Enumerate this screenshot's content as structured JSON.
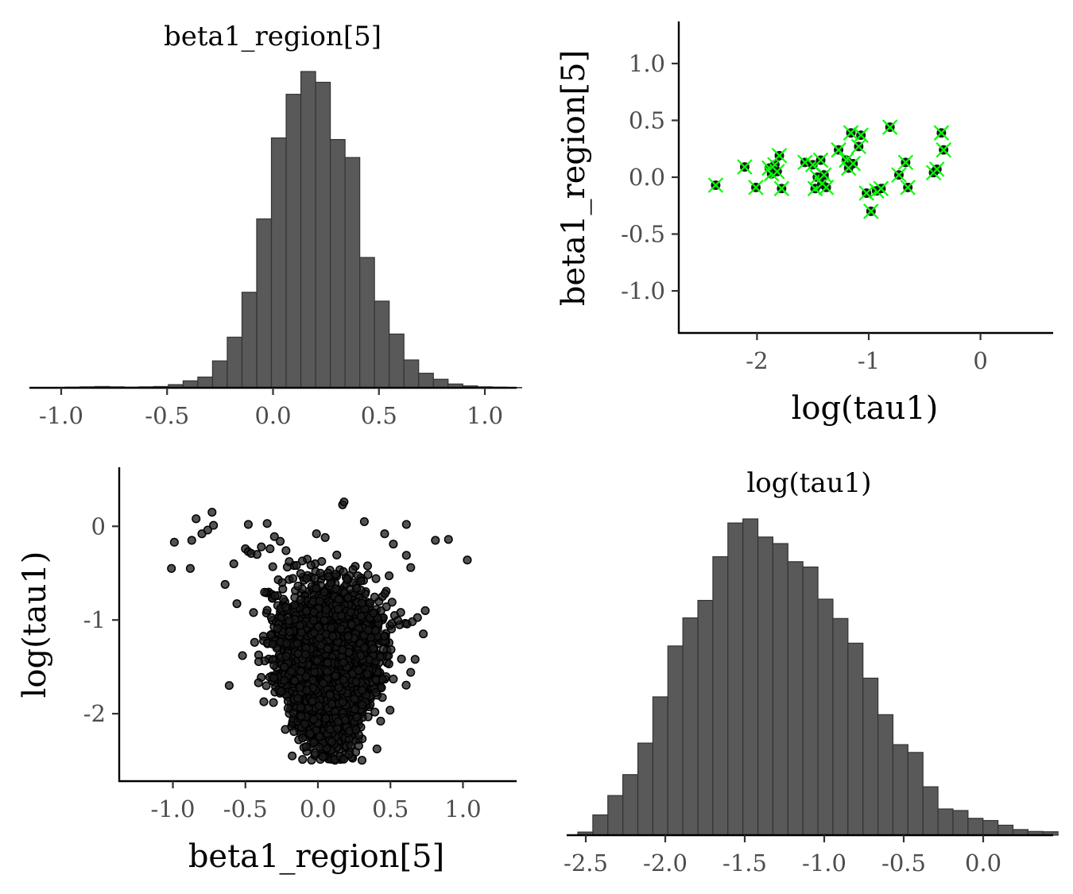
{
  "chart_data": [
    {
      "type": "histogram",
      "title": "beta1_region[5]",
      "xlabel": "",
      "ylabel": "",
      "xlim": [
        -1.15,
        1.15
      ],
      "xticks": [
        -1.0,
        -0.5,
        0.0,
        0.5,
        1.0
      ],
      "xtick_labels": [
        "-1.0",
        "-0.5",
        "0.0",
        "0.5",
        "1.0"
      ],
      "bin_start": -1.05,
      "bin_width": 0.0695,
      "counts": [
        1,
        2,
        3,
        4,
        3,
        2,
        3,
        4,
        10,
        22,
        34,
        85,
        160,
        302,
        534,
        790,
        928,
        1000,
        966,
        785,
        728,
        412,
        274,
        170,
        88,
        46,
        27,
        12,
        6,
        3,
        2,
        1
      ],
      "grid": false
    },
    {
      "type": "scatter",
      "title": "",
      "xlabel": "log(tau1)",
      "ylabel": "beta1_region[5]",
      "xlim": [
        -2.7,
        0.65
      ],
      "ylim": [
        -1.37,
        1.37
      ],
      "xticks": [
        -2,
        -1,
        0
      ],
      "xtick_labels": [
        "-2",
        "-1",
        "0"
      ],
      "yticks": [
        -1.0,
        -0.5,
        0.0,
        0.5,
        1.0
      ],
      "ytick_labels": [
        "-1.0",
        "-0.5",
        "0.0",
        "0.5",
        "1.0"
      ],
      "divergent_color": "#00ff00",
      "divergent_points": [
        [
          -2.37,
          -0.07
        ],
        [
          -2.11,
          0.09
        ],
        [
          -2.01,
          -0.09
        ],
        [
          -1.89,
          0.08
        ],
        [
          -1.87,
          0.03
        ],
        [
          -1.84,
          0.11
        ],
        [
          -1.82,
          0.05
        ],
        [
          -1.8,
          0.19
        ],
        [
          -1.78,
          -0.1
        ],
        [
          -1.57,
          0.13
        ],
        [
          -1.5,
          0.11
        ],
        [
          -1.48,
          -0.1
        ],
        [
          -1.46,
          0.0
        ],
        [
          -1.43,
          0.15
        ],
        [
          -1.42,
          -0.06
        ],
        [
          -1.4,
          0.02
        ],
        [
          -1.38,
          -0.09
        ],
        [
          -1.27,
          0.24
        ],
        [
          -1.2,
          0.15
        ],
        [
          -1.18,
          0.08
        ],
        [
          -1.16,
          0.39
        ],
        [
          -1.14,
          0.12
        ],
        [
          -1.09,
          0.27
        ],
        [
          -1.07,
          0.37
        ],
        [
          -1.02,
          -0.14
        ],
        [
          -0.98,
          -0.3
        ],
        [
          -0.93,
          -0.12
        ],
        [
          -0.89,
          -0.1
        ],
        [
          -0.81,
          0.44
        ],
        [
          -0.73,
          0.02
        ],
        [
          -0.67,
          0.13
        ],
        [
          -0.65,
          -0.09
        ],
        [
          -0.42,
          0.04
        ],
        [
          -0.39,
          0.07
        ],
        [
          -0.35,
          0.39
        ],
        [
          -0.33,
          0.24
        ]
      ],
      "grid": false
    },
    {
      "type": "scatter",
      "title": "",
      "xlabel": "beta1_region[5]",
      "ylabel": "log(tau1)",
      "xlim": [
        -1.37,
        1.37
      ],
      "ylim": [
        -2.72,
        0.63
      ],
      "xticks": [
        -1.0,
        -0.5,
        0.0,
        0.5,
        1.0
      ],
      "xtick_labels": [
        "-1.0",
        "-0.5",
        "0.0",
        "0.5",
        "1.0"
      ],
      "yticks": [
        -2,
        -1,
        0
      ],
      "ytick_labels": [
        "-2",
        "-1",
        "0"
      ],
      "point_color": "#1a1a1a",
      "n_draws": 4000,
      "bulk": {
        "center_x": 0.07,
        "sd_x": 0.22,
        "center_y": -1.48,
        "sd_y": 0.38,
        "y_min": -2.5,
        "y_max": -0.25
      },
      "outlier_points": [
        [
          -1.01,
          -0.45
        ],
        [
          -0.99,
          -0.17
        ],
        [
          -0.88,
          -0.45
        ],
        [
          -0.87,
          -0.15
        ],
        [
          -0.84,
          0.08
        ],
        [
          -0.8,
          -0.08
        ],
        [
          -0.76,
          -0.04
        ],
        [
          -0.73,
          0.15
        ],
        [
          -0.72,
          0.01
        ],
        [
          -0.64,
          -0.62
        ],
        [
          -0.58,
          -0.4
        ],
        [
          -0.5,
          -0.24
        ],
        [
          -0.48,
          -0.27
        ],
        [
          -0.46,
          -0.29
        ],
        [
          -0.48,
          0.02
        ],
        [
          -0.42,
          -0.3
        ],
        [
          -0.39,
          -0.22
        ],
        [
          -0.35,
          0.03
        ],
        [
          -0.33,
          -0.24
        ],
        [
          -0.3,
          -0.11
        ],
        [
          -0.26,
          -0.16
        ],
        [
          -0.22,
          -0.26
        ],
        [
          -0.01,
          -0.08
        ],
        [
          0.05,
          -0.12
        ],
        [
          0.17,
          0.23
        ],
        [
          0.18,
          0.26
        ],
        [
          0.32,
          0.05
        ],
        [
          0.46,
          -0.08
        ],
        [
          0.52,
          -0.19
        ],
        [
          0.61,
          0.02
        ],
        [
          0.61,
          -0.31
        ],
        [
          0.64,
          -0.44
        ],
        [
          0.74,
          -0.9
        ],
        [
          0.81,
          -0.15
        ],
        [
          0.9,
          -0.14
        ],
        [
          1.03,
          -0.36
        ],
        [
          -0.52,
          -1.38
        ],
        [
          0.67,
          -1.42
        ],
        [
          -0.41,
          -1.67
        ],
        [
          0.52,
          -1.63
        ]
      ],
      "grid": false
    },
    {
      "type": "histogram",
      "title": "log(tau1)",
      "xlabel": "",
      "ylabel": "",
      "xlim": [
        -2.62,
        0.44
      ],
      "xticks": [
        -2.5,
        -2.0,
        -1.5,
        -1.0,
        -0.5,
        0.0
      ],
      "xtick_labels": [
        "-2.5",
        "-2.0",
        "-1.5",
        "-1.0",
        "-0.5",
        "0.0"
      ],
      "bin_start": -2.55,
      "bin_width": 0.0944,
      "counts": [
        10,
        65,
        127,
        194,
        295,
        443,
        606,
        696,
        752,
        892,
        1000,
        1013,
        955,
        934,
        876,
        859,
        756,
        694,
        615,
        503,
        386,
        290,
        265,
        155,
        84,
        79,
        54,
        47,
        32,
        18,
        12,
        11
      ],
      "grid": false
    }
  ]
}
